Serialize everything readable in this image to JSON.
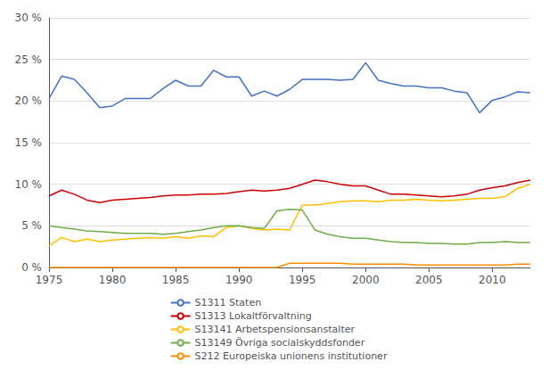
{
  "chart_data": {
    "type": "line",
    "x": [
      1975,
      1976,
      1977,
      1978,
      1979,
      1980,
      1981,
      1982,
      1983,
      1984,
      1985,
      1986,
      1987,
      1988,
      1989,
      1990,
      1991,
      1992,
      1993,
      1994,
      1995,
      1996,
      1997,
      1998,
      1999,
      2000,
      2001,
      2002,
      2003,
      2004,
      2005,
      2006,
      2007,
      2008,
      2009,
      2010,
      2011,
      2012,
      2013
    ],
    "series": [
      {
        "name": "S1311 Staten",
        "color": "#4472C4",
        "values": [
          20.3,
          23.0,
          22.6,
          21.0,
          19.2,
          19.4,
          20.3,
          20.3,
          20.3,
          21.5,
          22.5,
          21.8,
          21.8,
          23.7,
          22.9,
          22.9,
          20.6,
          21.2,
          20.6,
          21.4,
          22.6,
          22.6,
          22.6,
          22.5,
          22.6,
          24.6,
          22.5,
          22.1,
          21.8,
          21.8,
          21.6,
          21.6,
          21.2,
          21.0,
          18.6,
          20.1,
          20.5,
          21.1,
          21.0
        ]
      },
      {
        "name": "S1313 Lokaltförvaltning",
        "color": "#CC0000",
        "values": [
          8.6,
          9.3,
          8.8,
          8.1,
          7.8,
          8.1,
          8.2,
          8.3,
          8.4,
          8.6,
          8.7,
          8.7,
          8.8,
          8.8,
          8.9,
          9.1,
          9.3,
          9.2,
          9.3,
          9.5,
          10.0,
          10.5,
          10.3,
          10.0,
          9.8,
          9.8,
          9.3,
          8.8,
          8.8,
          8.7,
          8.6,
          8.5,
          8.6,
          8.8,
          9.3,
          9.6,
          9.8,
          10.2,
          10.5
        ]
      },
      {
        "name": "S13141 Arbetspensionsanstalter",
        "color": "#FFC000",
        "values": [
          2.6,
          3.6,
          3.1,
          3.4,
          3.1,
          3.3,
          3.4,
          3.5,
          3.6,
          3.5,
          3.7,
          3.5,
          3.8,
          3.7,
          4.8,
          5.0,
          4.7,
          4.5,
          4.6,
          4.5,
          7.5,
          7.5,
          7.7,
          7.9,
          8.0,
          8.0,
          7.9,
          8.1,
          8.1,
          8.2,
          8.1,
          8.0,
          8.1,
          8.2,
          8.3,
          8.3,
          8.5,
          9.5,
          10.0
        ]
      },
      {
        "name": "S13149 Övriga socialskyddsfonder",
        "color": "#70AD47",
        "values": [
          5.0,
          4.8,
          4.6,
          4.4,
          4.3,
          4.2,
          4.1,
          4.1,
          4.1,
          4.0,
          4.1,
          4.3,
          4.5,
          4.8,
          5.0,
          5.0,
          4.8,
          4.7,
          6.8,
          7.0,
          6.9,
          4.5,
          4.0,
          3.7,
          3.5,
          3.5,
          3.3,
          3.1,
          3.0,
          3.0,
          2.9,
          2.9,
          2.8,
          2.8,
          3.0,
          3.0,
          3.1,
          3.0,
          3.0
        ]
      },
      {
        "name": "S212 Europeiska unionens institutioner",
        "color": "#FF8C00",
        "values": [
          0.0,
          0.0,
          0.0,
          0.0,
          0.0,
          0.0,
          0.0,
          0.0,
          0.0,
          0.0,
          0.0,
          0.0,
          0.0,
          0.0,
          0.0,
          0.0,
          0.0,
          0.0,
          0.0,
          0.5,
          0.5,
          0.5,
          0.5,
          0.5,
          0.4,
          0.4,
          0.4,
          0.4,
          0.4,
          0.3,
          0.3,
          0.3,
          0.3,
          0.3,
          0.3,
          0.3,
          0.3,
          0.4,
          0.4
        ]
      }
    ],
    "xlim": [
      1975,
      2013
    ],
    "xticks": [
      1975,
      1980,
      1985,
      1990,
      1995,
      2000,
      2005,
      2010
    ],
    "ylim": [
      0,
      30
    ],
    "yticks": [
      {
        "value": 0,
        "label": "0 %"
      },
      {
        "value": 5,
        "label": "5 %"
      },
      {
        "value": 10,
        "label": "10 %"
      },
      {
        "value": 15,
        "label": "15 %"
      },
      {
        "value": 20,
        "label": "20 %"
      },
      {
        "value": 25,
        "label": "25 %"
      },
      {
        "value": 30,
        "label": "30 %"
      }
    ],
    "grid": true,
    "legend": "bottom"
  }
}
